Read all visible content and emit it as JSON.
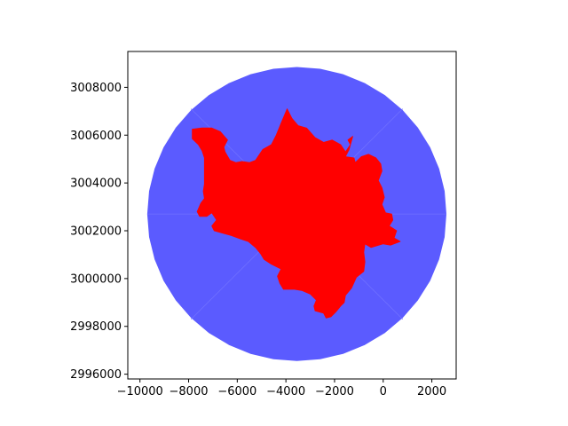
{
  "chart_data": {
    "type": "map",
    "title": "",
    "xlabel": "",
    "ylabel": "",
    "xlim": [
      -10500,
      3000
    ],
    "ylim": [
      2995800,
      3009500
    ],
    "x_ticks": [
      -10000,
      -8000,
      -6000,
      -4000,
      -2000,
      0,
      2000
    ],
    "x_tick_labels": [
      "−10000",
      "−8000",
      "−6000",
      "−4000",
      "−2000",
      "0",
      "2000"
    ],
    "y_ticks": [
      2996000,
      2998000,
      3000000,
      3002000,
      3004000,
      3006000,
      3008000
    ],
    "y_tick_labels": [
      "2996000",
      "2998000",
      "3000000",
      "3002000",
      "3004000",
      "3006000",
      "3008000"
    ],
    "grid": false,
    "legend": false,
    "colors": {
      "circle": "#5b5bff",
      "region": "#ff0000",
      "axes": "#000000",
      "sector_line": "#7070ff"
    },
    "circle": {
      "center": [
        -3550,
        3002700
      ],
      "radius": 6150,
      "segments": 40
    },
    "sector_lines": [
      [
        [
          -7900,
          3007100
        ],
        [
          800,
          2998300
        ]
      ],
      [
        [
          -7900,
          2998300
        ],
        [
          800,
          3007100
        ]
      ],
      [
        [
          -9700,
          3002700
        ],
        [
          2600,
          3002700
        ]
      ]
    ],
    "region_polygon": [
      [
        -3950,
        3007100
      ],
      [
        -3750,
        3006700
      ],
      [
        -3500,
        3006400
      ],
      [
        -3150,
        3006300
      ],
      [
        -2800,
        3005900
      ],
      [
        -2450,
        3005700
      ],
      [
        -2100,
        3005800
      ],
      [
        -1750,
        3005600
      ],
      [
        -1550,
        3005300
      ],
      [
        -1350,
        3005600
      ],
      [
        -1450,
        3005800
      ],
      [
        -1250,
        3005950
      ],
      [
        -1400,
        3005400
      ],
      [
        -1550,
        3005100
      ],
      [
        -1200,
        3005050
      ],
      [
        -1150,
        3004850
      ],
      [
        -900,
        3005100
      ],
      [
        -600,
        3005200
      ],
      [
        -300,
        3005050
      ],
      [
        -100,
        3004800
      ],
      [
        -50,
        3004500
      ],
      [
        -200,
        3004100
      ],
      [
        -50,
        3003800
      ],
      [
        50,
        3003400
      ],
      [
        -50,
        3003100
      ],
      [
        100,
        3002750
      ],
      [
        350,
        3002700
      ],
      [
        400,
        3002450
      ],
      [
        250,
        3002200
      ],
      [
        550,
        3002000
      ],
      [
        450,
        3001700
      ],
      [
        700,
        3001550
      ],
      [
        300,
        3001400
      ],
      [
        0,
        3001450
      ],
      [
        -500,
        3001300
      ],
      [
        -750,
        3001450
      ],
      [
        -800,
        3001100
      ],
      [
        -750,
        3000700
      ],
      [
        -800,
        3000300
      ],
      [
        -1100,
        3000050
      ],
      [
        -1300,
        2999600
      ],
      [
        -1550,
        2999300
      ],
      [
        -1600,
        2999000
      ],
      [
        -1750,
        2998850
      ],
      [
        -1950,
        2998600
      ],
      [
        -2150,
        2998400
      ],
      [
        -2350,
        2998350
      ],
      [
        -2450,
        2998550
      ],
      [
        -2800,
        2998650
      ],
      [
        -2850,
        2998850
      ],
      [
        -2750,
        2999100
      ],
      [
        -3000,
        2999350
      ],
      [
        -3350,
        2999500
      ],
      [
        -3650,
        2999550
      ],
      [
        -4100,
        2999550
      ],
      [
        -4250,
        2999800
      ],
      [
        -4350,
        3000100
      ],
      [
        -4200,
        3000400
      ],
      [
        -4600,
        3000600
      ],
      [
        -4900,
        3000800
      ],
      [
        -5050,
        3001050
      ],
      [
        -5250,
        3001300
      ],
      [
        -5550,
        3001550
      ],
      [
        -5850,
        3001650
      ],
      [
        -6250,
        3001800
      ],
      [
        -6600,
        3001900
      ],
      [
        -6950,
        3002000
      ],
      [
        -7050,
        3002200
      ],
      [
        -6850,
        3002450
      ],
      [
        -7050,
        3002750
      ],
      [
        -7250,
        3002600
      ],
      [
        -7550,
        3002600
      ],
      [
        -7650,
        3002800
      ],
      [
        -7500,
        3003150
      ],
      [
        -7350,
        3003350
      ],
      [
        -7400,
        3003650
      ],
      [
        -7350,
        3003950
      ],
      [
        -7350,
        3004300
      ],
      [
        -7350,
        3004700
      ],
      [
        -7350,
        3005050
      ],
      [
        -7450,
        3005350
      ],
      [
        -7600,
        3005600
      ],
      [
        -7850,
        3005850
      ],
      [
        -7850,
        3006250
      ],
      [
        -7450,
        3006300
      ],
      [
        -7050,
        3006300
      ],
      [
        -6700,
        3006150
      ],
      [
        -6400,
        3005800
      ],
      [
        -6550,
        3005500
      ],
      [
        -6500,
        3005300
      ],
      [
        -6300,
        3004950
      ],
      [
        -6050,
        3004850
      ],
      [
        -5800,
        3004900
      ],
      [
        -5500,
        3004850
      ],
      [
        -5250,
        3004950
      ],
      [
        -4950,
        3005400
      ],
      [
        -4600,
        3005600
      ],
      [
        -4400,
        3006000
      ],
      [
        -4200,
        3006500
      ]
    ]
  }
}
